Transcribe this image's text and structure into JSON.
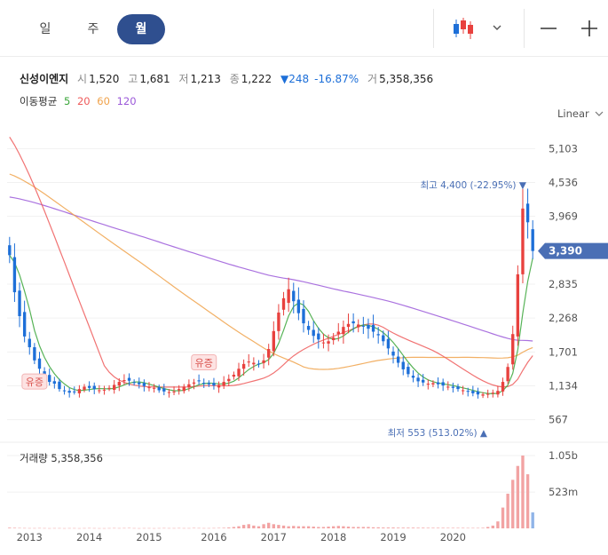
{
  "tabs": [
    {
      "label": "일",
      "active": false
    },
    {
      "label": "주",
      "active": false
    },
    {
      "label": "월",
      "active": true
    }
  ],
  "toolbar": {
    "chart_type_icon": "candlestick-icon",
    "dropdown_icon": "chevron-down-icon",
    "zoom_out_icon": "minus-icon",
    "zoom_in_icon": "plus-icon"
  },
  "stock": {
    "name": "신성이엔지",
    "open_label": "시",
    "open": "1,520",
    "high_label": "고",
    "high": "1,681",
    "low_label": "저",
    "low": "1,213",
    "close_label": "종",
    "close": "1,222",
    "change_arrow": "▼",
    "change": "248",
    "change_pct": "-16.87%",
    "volume_label": "거",
    "volume": "5,358,356"
  },
  "moving_average": {
    "label": "이동평균",
    "periods": [
      {
        "period": "5",
        "color": "#3aa63a"
      },
      {
        "period": "20",
        "color": "#ef5b5b"
      },
      {
        "period": "60",
        "color": "#f0a24a"
      },
      {
        "period": "120",
        "color": "#9b59d9"
      }
    ]
  },
  "scale_toggle": "Linear",
  "colors": {
    "up": "#e8413e",
    "down": "#1d6fd8",
    "accent": "#2f4f8f",
    "current": "#4a6fb5",
    "volume": "#f2a3a3"
  },
  "chart_data": {
    "type": "candlestick",
    "x_labels": [
      "2013",
      "2014",
      "2015",
      "2016",
      "2017",
      "2018",
      "2019",
      "2020"
    ],
    "price_axis_ticks": [
      "5,103",
      "4,536",
      "3,969",
      "3,402",
      "2,835",
      "2,268",
      "1,701",
      "1,134",
      "567"
    ],
    "price_axis_values": [
      5103,
      4536,
      3969,
      3402,
      2835,
      2268,
      1701,
      1134,
      567
    ],
    "ylim": [
      280,
      5390
    ],
    "current_price": {
      "label": "3,390",
      "value": 3390
    },
    "max_marker": {
      "label": "최고",
      "value": "4,400",
      "pct": "(-22.95%)",
      "arrow": "▼"
    },
    "min_marker": {
      "label": "최저",
      "value": "553",
      "pct": "(513.02%)",
      "arrow": "▲"
    },
    "events": [
      {
        "label": "유증"
      },
      {
        "label": "유증"
      }
    ],
    "volume_axis_ticks": [
      "1.05b",
      "523m"
    ],
    "volume_title": "거래량",
    "volume_value": "5,358,356",
    "closes": [
      3320,
      2700,
      2300,
      1960,
      1780,
      1560,
      1420,
      1330,
      1200,
      1170,
      1080,
      1050,
      1020,
      1040,
      1080,
      1120,
      1100,
      1080,
      1060,
      1070,
      1100,
      1150,
      1200,
      1230,
      1220,
      1190,
      1160,
      1130,
      1110,
      1100,
      1060,
      1040,
      1030,
      1040,
      1080,
      1120,
      1160,
      1190,
      1210,
      1180,
      1160,
      1140,
      1150,
      1200,
      1250,
      1320,
      1420,
      1500,
      1540,
      1520,
      1500,
      1560,
      1750,
      2050,
      2360,
      2600,
      2750,
      2550,
      2350,
      2180,
      2070,
      1970,
      1910,
      1860,
      1880,
      1940,
      2040,
      2120,
      2170,
      2180,
      2160,
      2130,
      2090,
      2040,
      1980,
      1880,
      1760,
      1640,
      1520,
      1410,
      1330,
      1270,
      1210,
      1190,
      1170,
      1180,
      1160,
      1140,
      1120,
      1100,
      1080,
      1060,
      1040,
      1010,
      990,
      990,
      1000,
      1020,
      1050,
      1200,
      1450,
      2000,
      3000,
      4100,
      3870,
      3390
    ],
    "volume_values": [
      0.01,
      0.008,
      0.006,
      0.005,
      0.004,
      0.004,
      0.005,
      0.004,
      0.003,
      0.004,
      0.004,
      0.003,
      0.004,
      0.004,
      0.003,
      0.004,
      0.005,
      0.004,
      0.003,
      0.003,
      0.004,
      0.005,
      0.004,
      0.005,
      0.006,
      0.004,
      0.003,
      0.004,
      0.004,
      0.003,
      0.004,
      0.005,
      0.004,
      0.004,
      0.005,
      0.004,
      0.004,
      0.006,
      0.005,
      0.004,
      0.004,
      0.005,
      0.006,
      0.008,
      0.012,
      0.02,
      0.03,
      0.05,
      0.06,
      0.04,
      0.03,
      0.06,
      0.08,
      0.06,
      0.05,
      0.04,
      0.03,
      0.035,
      0.03,
      0.03,
      0.03,
      0.025,
      0.02,
      0.02,
      0.025,
      0.03,
      0.035,
      0.03,
      0.025,
      0.02,
      0.02,
      0.02,
      0.02,
      0.015,
      0.015,
      0.012,
      0.012,
      0.012,
      0.01,
      0.01,
      0.01,
      0.01,
      0.009,
      0.009,
      0.008,
      0.008,
      0.008,
      0.008,
      0.007,
      0.007,
      0.007,
      0.007,
      0.006,
      0.006,
      0.006,
      0.008,
      0.02,
      0.04,
      0.1,
      0.3,
      0.5,
      0.7,
      0.9,
      1.05,
      0.78,
      0.23
    ]
  }
}
